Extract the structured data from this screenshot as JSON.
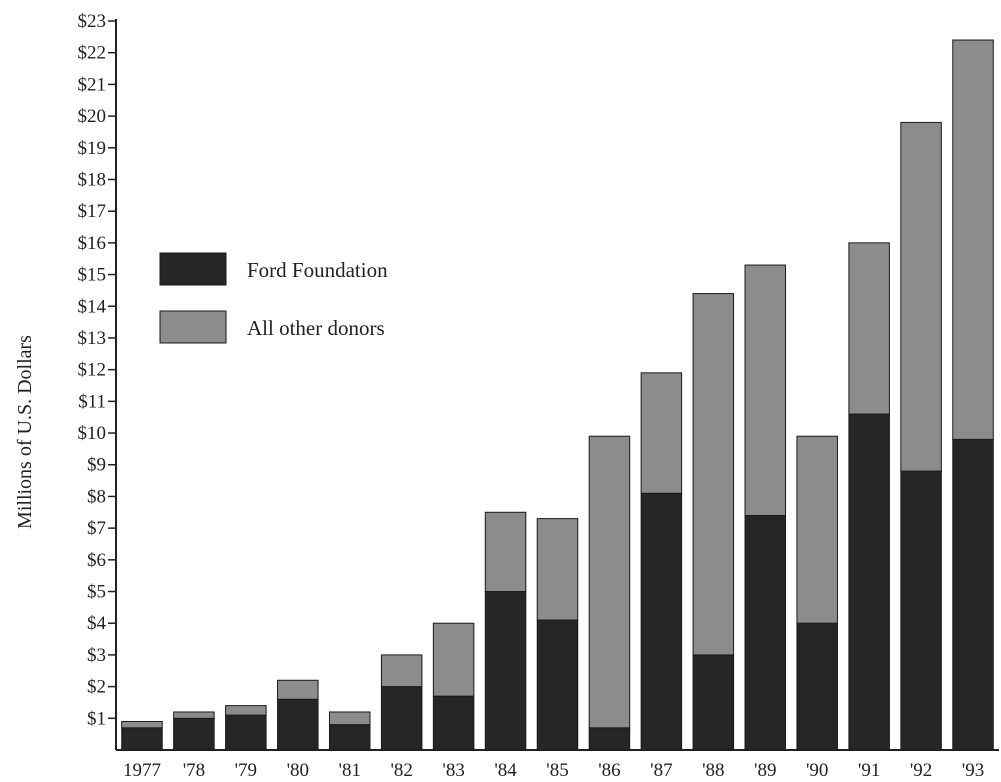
{
  "chart_data": {
    "type": "bar",
    "stacked": true,
    "title": "",
    "xlabel": "",
    "ylabel": "Millions of U.S. Dollars",
    "ylim": [
      0,
      23
    ],
    "y_ticks": [
      "$1",
      "$2",
      "$3",
      "$4",
      "$5",
      "$6",
      "$7",
      "$8",
      "$9",
      "$10",
      "$11",
      "$12",
      "$13",
      "$14",
      "$15",
      "$16",
      "$17",
      "$18",
      "$19",
      "$20",
      "$21",
      "$22",
      "$23"
    ],
    "categories": [
      "1977",
      "'78",
      "'79",
      "'80",
      "'81",
      "'82",
      "'83",
      "'84",
      "'85",
      "'86",
      "'87",
      "'88",
      "'89",
      "'90",
      "'91",
      "'92",
      "'93"
    ],
    "series": [
      {
        "name": "Ford Foundation",
        "color": "#262626",
        "values": [
          0.7,
          1.0,
          1.1,
          1.6,
          0.8,
          2.0,
          1.7,
          5.0,
          4.1,
          0.7,
          8.1,
          3.0,
          7.4,
          4.0,
          10.6,
          8.8,
          9.8
        ]
      },
      {
        "name": "All other donors",
        "color": "#8c8c8c",
        "values": [
          0.2,
          0.2,
          0.3,
          0.6,
          0.4,
          1.0,
          2.3,
          2.5,
          3.2,
          9.2,
          3.8,
          11.4,
          7.9,
          5.9,
          5.4,
          11.0,
          12.6
        ]
      }
    ],
    "legend": {
      "placement": "upper-left",
      "entries": [
        "Ford Foundation",
        "All other donors"
      ]
    },
    "grid": false
  }
}
